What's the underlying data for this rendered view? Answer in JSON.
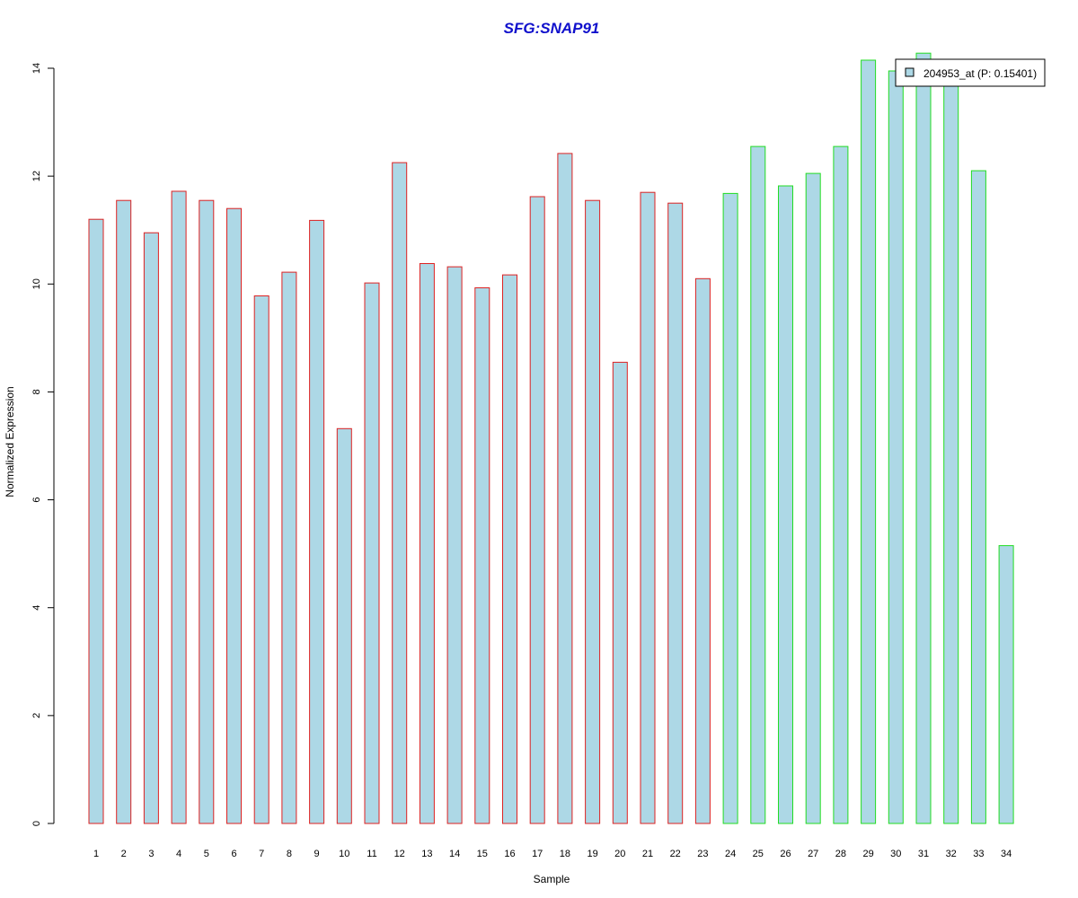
{
  "chart_data": {
    "type": "bar",
    "title": "SFG:SNAP91",
    "xlabel": "Sample",
    "ylabel": "Normalized Expression",
    "ylim": [
      0,
      14
    ],
    "yticks": [
      "0",
      "2",
      "4",
      "6",
      "8",
      "10",
      "12",
      "14"
    ],
    "categories": [
      "1",
      "2",
      "3",
      "4",
      "5",
      "6",
      "7",
      "8",
      "9",
      "10",
      "11",
      "12",
      "13",
      "14",
      "15",
      "16",
      "17",
      "18",
      "19",
      "20",
      "21",
      "22",
      "23",
      "24",
      "25",
      "26",
      "27",
      "28",
      "29",
      "30",
      "31",
      "32",
      "33",
      "34"
    ],
    "series": [
      {
        "name": "204953_at (P: 0.15401)",
        "values": [
          11.2,
          11.55,
          10.95,
          11.72,
          11.55,
          11.4,
          9.78,
          10.22,
          11.18,
          7.32,
          10.02,
          12.25,
          10.38,
          10.32,
          9.93,
          10.17,
          11.62,
          12.42,
          11.55,
          8.55,
          11.7,
          11.5,
          10.1,
          11.68,
          12.55,
          11.82,
          12.05,
          12.55,
          14.15,
          13.95,
          14.28,
          13.72,
          12.1,
          5.15
        ]
      }
    ],
    "groups": [
      {
        "from": 1,
        "to": 23,
        "border_color": "#dd2222"
      },
      {
        "from": 24,
        "to": 34,
        "border_color": "#22dd22"
      }
    ],
    "legend": {
      "placement": "top-right",
      "entries": [
        "204953_at (P: 0.15401)"
      ]
    },
    "grid": false
  },
  "colors": {
    "bar_fill": "#add8e6",
    "title": "#1010cc",
    "axis": "#000000"
  }
}
